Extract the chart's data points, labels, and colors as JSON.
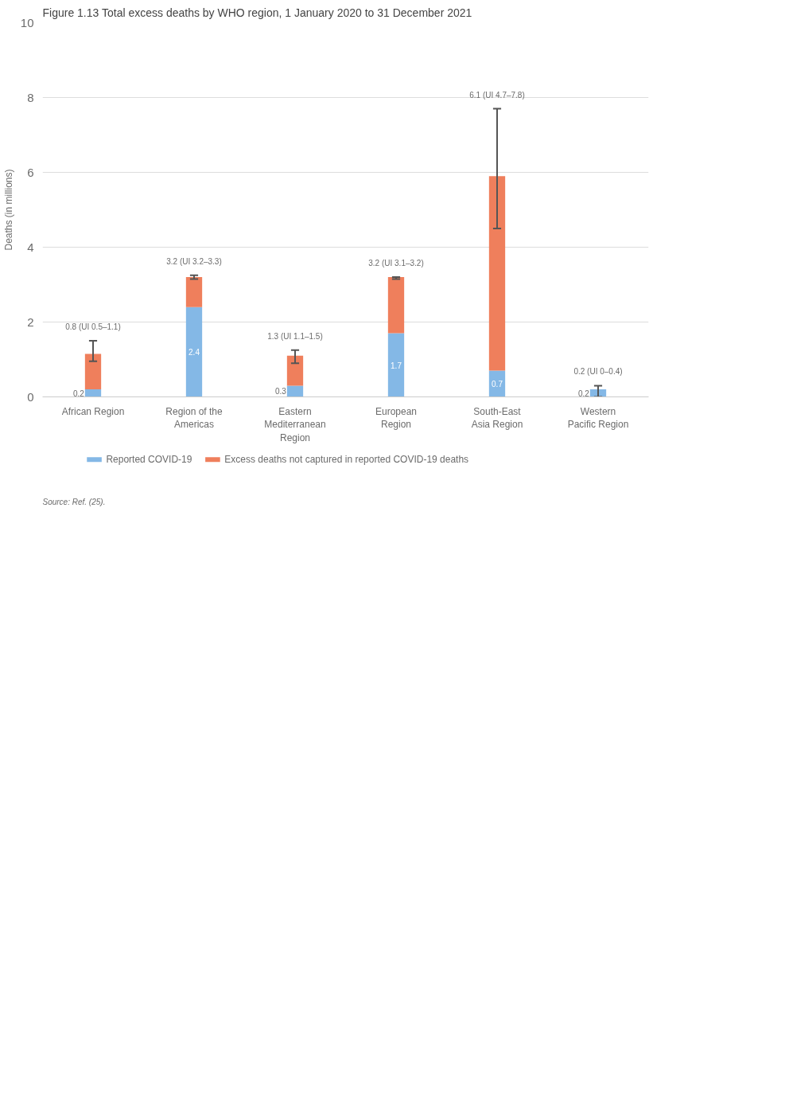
{
  "chart_data": {
    "type": "bar",
    "title": "Figure 1.13 Total excess deaths by WHO region, 1 January 2020 to 31 December 2021",
    "ylabel": "Deaths (in millions)",
    "categories": [
      "African Region",
      "Region of the Americas",
      "Eastern Mediterranean Region",
      "European Region",
      "South-East Asia Region",
      "Western Pacific Region"
    ],
    "stacked": true,
    "series": [
      {
        "name": "Reported COVID-19",
        "color": "#84b8e6",
        "values": [
          0.2,
          2.4,
          0.3,
          1.7,
          0.7,
          0.2
        ],
        "value_labels": [
          "0.2",
          "2.4",
          "0.3",
          "1.7",
          "0.7",
          "0.2"
        ],
        "errors": [
          null,
          null,
          null,
          null,
          null,
          [
            0,
            0.3
          ]
        ]
      },
      {
        "name": "Excess deaths not captured in reported COVID-19 deaths",
        "color": "#ef7f5c",
        "values": [
          0.95,
          0.8,
          0.8,
          1.5,
          5.2,
          null
        ],
        "errors": [
          [
            0.95,
            1.5
          ],
          [
            3.15,
            3.25
          ],
          [
            0.9,
            1.25
          ],
          [
            3.15,
            3.2
          ],
          [
            4.5,
            7.7
          ],
          null
        ]
      }
    ],
    "ylim": [
      0,
      10
    ],
    "yticks": [
      0,
      2,
      4,
      6,
      8,
      10
    ],
    "grid": "y",
    "legend": "bottom left",
    "annotations": [
      {
        "text": "0.8 (UI 0.5–1.1)",
        "x": "African Region",
        "y": 1.15
      },
      {
        "text": "3.2 (UI 3.2–3.3)",
        "x": "Region of the Americas",
        "y": 3.2
      },
      {
        "text": "1.3 (UI 1.1–1.5)",
        "x": "Eastern Mediterranean Region",
        "y": 1.1
      },
      {
        "text": "3.2 (UI 3.1–3.2)",
        "x": "European Region",
        "y": 3.2
      },
      {
        "text": "6.1 (UI 4.7–7.8)",
        "x": "South-East Asia Region",
        "y": 7.7
      },
      {
        "text": "0.2 (UI 0–0.4)",
        "x": "Western Pacific Region",
        "y": 0.2
      },
      "Source: Ref. (25)."
    ]
  }
}
